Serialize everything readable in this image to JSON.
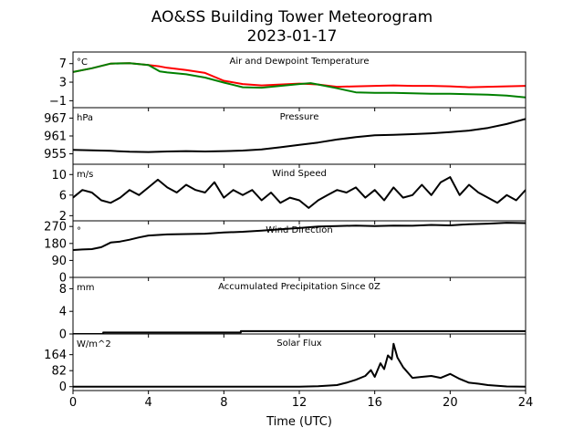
{
  "figure": {
    "title_line1": "AO&SS Building Tower Meteorogram",
    "title_line2": "2023-01-17",
    "xlabel": "Time (UTC)"
  },
  "chart_data": [
    {
      "type": "line",
      "title": "Air and Dewpoint Temperature",
      "unit": "°C",
      "ylim": [
        -2.5,
        9.5
      ],
      "yticks": [
        -1,
        3,
        7
      ],
      "xlim": [
        0,
        24
      ],
      "series": [
        {
          "color": "#ff0000",
          "x": [
            0,
            1,
            2,
            3,
            4,
            4.6,
            5,
            6,
            7,
            8,
            9,
            10,
            11,
            12,
            12.6,
            13,
            14,
            15,
            16,
            17,
            18,
            19,
            20,
            21,
            22,
            23,
            24
          ],
          "y": [
            5.2,
            6.0,
            7.0,
            7.1,
            6.7,
            6.4,
            6.1,
            5.6,
            5.0,
            3.3,
            2.6,
            2.3,
            2.5,
            2.7,
            2.6,
            2.5,
            2.0,
            2.1,
            2.2,
            2.3,
            2.2,
            2.2,
            2.1,
            1.9,
            2.0,
            2.1,
            2.2
          ]
        },
        {
          "color": "#008000",
          "x": [
            0,
            1,
            2,
            3,
            4,
            4.6,
            5,
            6,
            7,
            8,
            9,
            10,
            11,
            12,
            12.6,
            13,
            14,
            15,
            16,
            17,
            18,
            19,
            20,
            21,
            22,
            23,
            24
          ],
          "y": [
            5.2,
            6.0,
            7.0,
            7.1,
            6.7,
            5.3,
            5.1,
            4.7,
            4.0,
            2.9,
            1.9,
            1.8,
            2.2,
            2.6,
            2.8,
            2.5,
            1.7,
            0.8,
            0.7,
            0.7,
            0.6,
            0.5,
            0.5,
            0.4,
            0.3,
            0.1,
            -0.3
          ]
        }
      ]
    },
    {
      "type": "line",
      "title": "Pressure",
      "unit": "hPa",
      "ylim": [
        951.5,
        970.5
      ],
      "yticks": [
        955,
        961,
        967
      ],
      "xlim": [
        0,
        24
      ],
      "series": [
        {
          "color": "#000000",
          "x": [
            0,
            1,
            2,
            3,
            4,
            5,
            6,
            7,
            8,
            9,
            10,
            11,
            12,
            13,
            14,
            15,
            16,
            17,
            18,
            19,
            20,
            21,
            22,
            23,
            24
          ],
          "y": [
            956.3,
            956.2,
            956.0,
            955.7,
            955.6,
            955.8,
            955.9,
            955.8,
            955.9,
            956.1,
            956.5,
            957.2,
            958.0,
            958.8,
            959.8,
            960.6,
            961.2,
            961.4,
            961.6,
            961.9,
            962.3,
            962.8,
            963.7,
            965.0,
            966.7
          ]
        }
      ]
    },
    {
      "type": "line",
      "title": "Wind Speed",
      "unit": "m/s",
      "ylim": [
        1,
        12
      ],
      "yticks": [
        2,
        6,
        10
      ],
      "xlim": [
        0,
        24
      ],
      "series": [
        {
          "color": "#000000",
          "x": [
            0,
            0.5,
            1,
            1.5,
            2,
            2.5,
            3,
            3.5,
            4,
            4.5,
            5,
            5.5,
            6,
            6.5,
            7,
            7.5,
            8,
            8.5,
            9,
            9.5,
            10,
            10.5,
            11,
            11.5,
            12,
            12.5,
            13,
            13.5,
            14,
            14.5,
            15,
            15.5,
            16,
            16.5,
            17,
            17.5,
            18,
            18.5,
            19,
            19.5,
            20,
            20.5,
            21,
            21.5,
            22,
            22.5,
            23,
            23.5,
            24
          ],
          "y": [
            5.5,
            7.0,
            6.5,
            5.0,
            4.5,
            5.5,
            7.0,
            6.0,
            7.5,
            9.0,
            7.5,
            6.5,
            8.0,
            7.0,
            6.5,
            8.5,
            5.5,
            7.0,
            6.0,
            7.0,
            5.0,
            6.5,
            4.5,
            5.5,
            5.0,
            3.5,
            5.0,
            6.0,
            7.0,
            6.5,
            7.5,
            5.5,
            7.0,
            5.0,
            7.5,
            5.5,
            6.0,
            8.0,
            6.0,
            8.5,
            9.5,
            6.0,
            8.0,
            6.5,
            5.5,
            4.5,
            6.0,
            5.0,
            7.0
          ]
        }
      ]
    },
    {
      "type": "line",
      "title": "Wind Direction",
      "unit": "°",
      "ylim": [
        0,
        300
      ],
      "yticks": [
        0,
        90,
        180,
        270
      ],
      "xlim": [
        0,
        24
      ],
      "series": [
        {
          "color": "#000000",
          "x": [
            0,
            0.5,
            1,
            1.5,
            2,
            2.5,
            3,
            3.5,
            4,
            5,
            6,
            7,
            8,
            9,
            10,
            11,
            12,
            13,
            14,
            15,
            16,
            17,
            18,
            19,
            20,
            21,
            22,
            23,
            24
          ],
          "y": [
            145,
            148,
            150,
            160,
            185,
            190,
            200,
            212,
            222,
            228,
            230,
            232,
            238,
            242,
            248,
            255,
            262,
            270,
            272,
            275,
            272,
            275,
            274,
            278,
            276,
            282,
            285,
            290,
            288
          ]
        }
      ]
    },
    {
      "type": "line",
      "title": "Accumulated Precipitation Since 0Z",
      "unit": "mm",
      "ylim": [
        0,
        10
      ],
      "yticks": [
        0,
        4,
        8
      ],
      "xlim": [
        0,
        24
      ],
      "series": [
        {
          "color": "#000000",
          "x": [
            0,
            1.6,
            1.6,
            8.9,
            8.9,
            24
          ],
          "y": [
            0,
            0,
            0.25,
            0.25,
            0.5,
            0.5
          ]
        }
      ]
    },
    {
      "type": "line",
      "title": "Solar Flux",
      "unit": "W/m^2",
      "ylim": [
        -20,
        270
      ],
      "yticks": [
        0,
        82,
        164
      ],
      "xlim": [
        0,
        24
      ],
      "series": [
        {
          "color": "#000000",
          "x": [
            0,
            8,
            10,
            12,
            13,
            14,
            14.5,
            15,
            15.5,
            15.8,
            16,
            16.3,
            16.5,
            16.7,
            16.9,
            17,
            17.2,
            17.5,
            18,
            18.5,
            19,
            19.5,
            20,
            20.5,
            21,
            21.5,
            22,
            23,
            24
          ],
          "y": [
            0,
            0,
            0,
            0,
            2,
            8,
            20,
            35,
            55,
            85,
            50,
            120,
            90,
            160,
            140,
            220,
            150,
            100,
            45,
            50,
            55,
            45,
            65,
            40,
            20,
            15,
            8,
            1,
            0
          ]
        }
      ]
    }
  ],
  "x_axis": {
    "ticks": [
      0,
      4,
      8,
      12,
      16,
      20,
      24
    ]
  }
}
